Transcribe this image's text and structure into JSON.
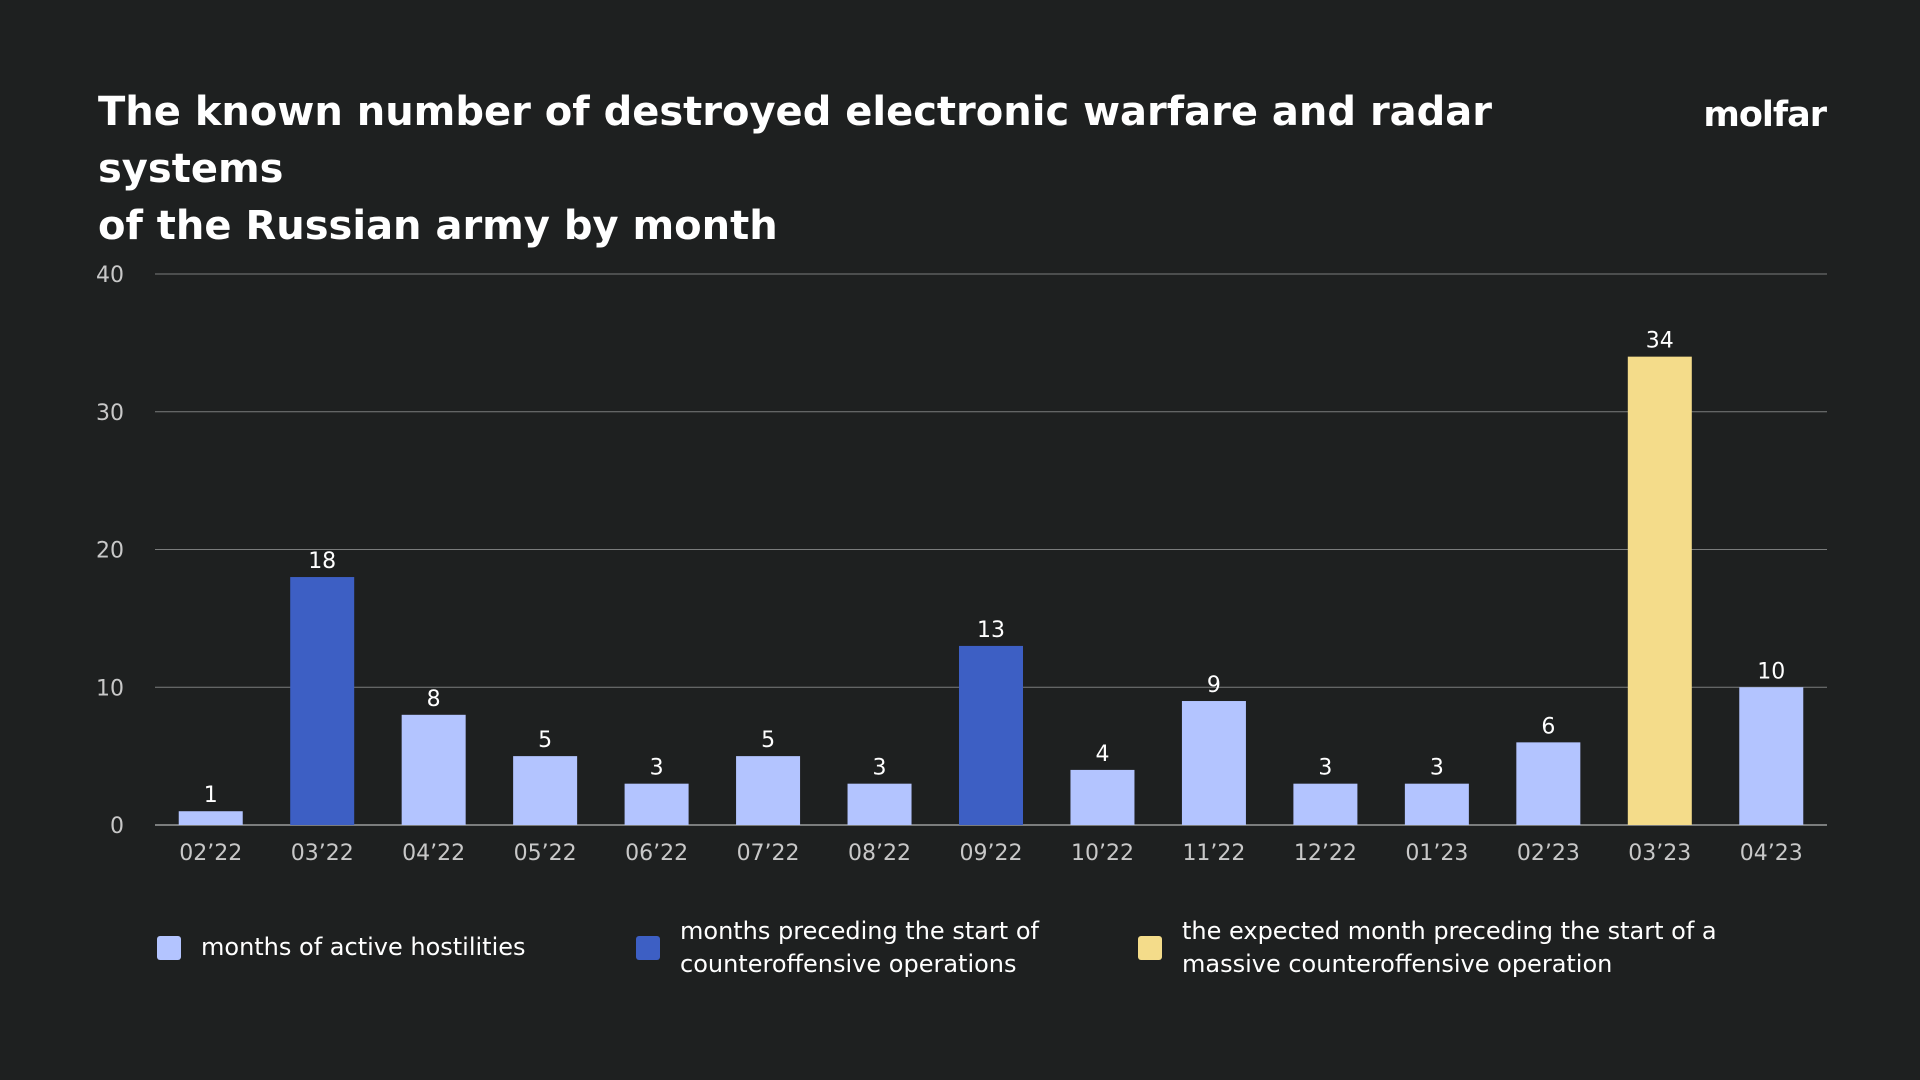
{
  "header": {
    "title_line1": "The known number of destroyed electronic warfare and radar systems",
    "title_line2": "of the Russian army by month",
    "logo_text": "molfar"
  },
  "colors": {
    "background": "#1e2020",
    "active": "#b3c4ff",
    "preceding": "#3d5fc4",
    "expected": "#f4dc8a",
    "grid": "#7a7c7c",
    "axis_text": "#c8c8c8"
  },
  "chart_data": {
    "type": "bar",
    "categories": [
      "02’22",
      "03’22",
      "04’22",
      "05’22",
      "06’22",
      "07’22",
      "08’22",
      "09’22",
      "10’22",
      "11’22",
      "12’22",
      "01’23",
      "02’23",
      "03’23",
      "04’23"
    ],
    "values": [
      1,
      18,
      8,
      5,
      3,
      5,
      3,
      13,
      4,
      9,
      3,
      3,
      6,
      34,
      10
    ],
    "groups": [
      "active",
      "preceding",
      "active",
      "active",
      "active",
      "active",
      "active",
      "preceding",
      "active",
      "active",
      "active",
      "active",
      "active",
      "expected",
      "active"
    ],
    "title": "The known number of destroyed electronic warfare and radar systems of the Russian army by month",
    "xlabel": "",
    "ylabel": "",
    "ylim": [
      0,
      40
    ],
    "yticks": [
      0,
      10,
      20,
      30,
      40
    ],
    "grid": true,
    "legend_placement": "bottom"
  },
  "legend": [
    {
      "key": "active",
      "label": "months of active hostilities"
    },
    {
      "key": "preceding",
      "label": "months preceding the start of\ncounteroffensive operations"
    },
    {
      "key": "expected",
      "label": "the expected month preceding the start of a\nmassive counteroffensive operation"
    }
  ]
}
